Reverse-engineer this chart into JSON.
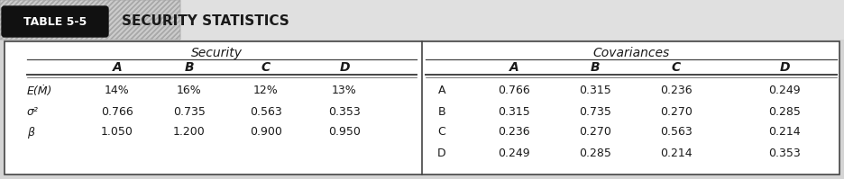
{
  "title_label": "TABLE 5-5",
  "title_text": "SECURITY STATISTICS",
  "security_header": "Security",
  "covariances_header": "Covariances",
  "sec_col_headers": [
    "A",
    "B",
    "C",
    "D"
  ],
  "cov_col_headers": [
    "A",
    "B",
    "C",
    "D"
  ],
  "row_labels": [
    "E(Ṁ)",
    "σ²",
    "β"
  ],
  "security_data": [
    [
      "14%",
      "16%",
      "12%",
      "13%"
    ],
    [
      "0.766",
      "0.735",
      "0.563",
      "0.353"
    ],
    [
      "1.050",
      "1.200",
      "0.900",
      "0.950"
    ]
  ],
  "cov_row_labels": [
    "A",
    "B",
    "C",
    "D"
  ],
  "cov_data": [
    [
      "0.766",
      "0.315",
      "0.236",
      "0.249"
    ],
    [
      "0.315",
      "0.735",
      "0.270",
      "0.285"
    ],
    [
      "0.236",
      "0.270",
      "0.563",
      "0.214"
    ],
    [
      "0.249",
      "0.285",
      "0.214",
      "0.353"
    ]
  ],
  "fig_bg": "#d4d4d4",
  "table_bg": "#ffffff",
  "label_box_bg": "#111111",
  "label_box_fg": "#ffffff",
  "text_color": "#1a1a1a",
  "border_color": "#444444",
  "hatch_bg": "#c8c8c8"
}
